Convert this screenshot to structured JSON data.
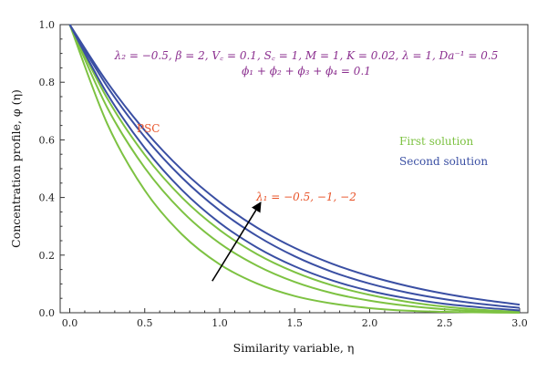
{
  "chart_data": {
    "type": "line",
    "xlabel": "Similarity variable, η",
    "ylabel": "Concentration profile, φ (η)",
    "xlim": [
      0,
      3
    ],
    "ylim": [
      0,
      1
    ],
    "x_ticks": [
      "0.0",
      "0.5",
      "1.0",
      "1.5",
      "2.0",
      "2.5",
      "3.0"
    ],
    "y_ticks": [
      "0.0",
      "0.2",
      "0.4",
      "0.6",
      "0.8",
      "1.0"
    ],
    "grid": false,
    "x": [
      0,
      0.25,
      0.5,
      0.75,
      1.0,
      1.25,
      1.5,
      1.75,
      2.0,
      2.25,
      2.5,
      2.75,
      3.0
    ],
    "series": [
      {
        "name": "First solution",
        "color": "#7dc242",
        "values": [
          1.0,
          0.656,
          0.425,
          0.271,
          0.168,
          0.101,
          0.058,
          0.032,
          0.016,
          0.007,
          0.003,
          0.001,
          0.0
        ]
      },
      {
        "name": "First solution",
        "color": "#7dc242",
        "values": [
          1.0,
          0.712,
          0.503,
          0.351,
          0.241,
          0.163,
          0.107,
          0.068,
          0.042,
          0.024,
          0.012,
          0.005,
          0.0
        ]
      },
      {
        "name": "First solution",
        "color": "#7dc242",
        "values": [
          1.0,
          0.744,
          0.548,
          0.399,
          0.287,
          0.203,
          0.141,
          0.095,
          0.062,
          0.038,
          0.021,
          0.01,
          0.003
        ]
      },
      {
        "name": "Second solution",
        "color": "#3a4fa3",
        "values": [
          1.0,
          0.76,
          0.572,
          0.425,
          0.312,
          0.226,
          0.161,
          0.112,
          0.076,
          0.05,
          0.031,
          0.018,
          0.008
        ]
      },
      {
        "name": "Second solution",
        "color": "#3a4fa3",
        "values": [
          1.0,
          0.785,
          0.61,
          0.468,
          0.355,
          0.266,
          0.196,
          0.142,
          0.101,
          0.07,
          0.047,
          0.03,
          0.017
        ]
      },
      {
        "name": "Second solution",
        "color": "#3a4fa3",
        "values": [
          1.0,
          0.8,
          0.633,
          0.495,
          0.384,
          0.295,
          0.225,
          0.17,
          0.127,
          0.093,
          0.066,
          0.045,
          0.028
        ]
      }
    ],
    "legend": [
      {
        "label": "First solution",
        "color": "#7dc242"
      },
      {
        "label": "Second solution",
        "color": "#3a4fa3"
      }
    ],
    "legend_placement": "right",
    "annotations": {
      "params_line1": "λ₂ = −0.5, β = 2, V꜀ = 0.1, S꜀ = 1, M = 1, K = 0.02, λ = 1, Da⁻¹ = 0.5",
      "params_line2": "ϕ₁ + ϕ₂ + ϕ₃ + ϕ₄ = 0.1",
      "params_color": "#8b2f8f",
      "psc_label": "PSC",
      "psc_color": "#e8542a",
      "lambda_label": "λ₁ = −0.5, −1, −2",
      "lambda_color": "#e8542a",
      "arrow_from": [
        0.95,
        0.11
      ],
      "arrow_to": [
        1.27,
        0.38
      ]
    }
  }
}
